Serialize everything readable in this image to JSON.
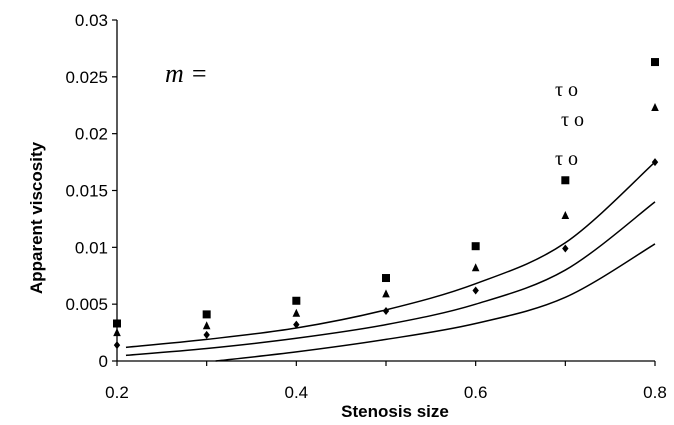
{
  "chart_data": {
    "type": "scatter",
    "xlabel": "Stenosis size",
    "ylabel": "Apparent viscosity",
    "xlim": [
      0.2,
      0.8
    ],
    "ylim": [
      0,
      0.03
    ],
    "grid": false,
    "x_ticks": [
      "0.2",
      "0.4",
      "0.6",
      "0.8"
    ],
    "y_ticks": [
      "0",
      "0.005",
      "0.01",
      "0.015",
      "0.02",
      "0.025",
      "0.03"
    ],
    "annotations": {
      "m_label": "m = ",
      "tau_labels": [
        "τ o",
        "τ o",
        "τ o"
      ]
    },
    "series": [
      {
        "marker": "square",
        "x": [
          0.2,
          0.3,
          0.4,
          0.5,
          0.6,
          0.7,
          0.8
        ],
        "y": [
          0.0033,
          0.0041,
          0.0053,
          0.0073,
          0.0101,
          0.0159,
          0.0263
        ]
      },
      {
        "marker": "triangle",
        "x": [
          0.2,
          0.3,
          0.4,
          0.5,
          0.6,
          0.7,
          0.8
        ],
        "y": [
          0.0025,
          0.0031,
          0.0042,
          0.0059,
          0.0082,
          0.0128,
          0.0223
        ]
      },
      {
        "marker": "diamond",
        "x": [
          0.2,
          0.3,
          0.4,
          0.5,
          0.6,
          0.7,
          0.8
        ],
        "y": [
          0.0014,
          0.0023,
          0.0032,
          0.0044,
          0.0062,
          0.0099,
          0.0175
        ]
      },
      {
        "marker": "line",
        "x": [
          0.21,
          0.3,
          0.4,
          0.5,
          0.6,
          0.7,
          0.8
        ],
        "y": [
          0.0012,
          0.0019,
          0.0029,
          0.0045,
          0.0068,
          0.0104,
          0.0175
        ]
      },
      {
        "marker": "line",
        "x": [
          0.21,
          0.3,
          0.4,
          0.5,
          0.6,
          0.7,
          0.8
        ],
        "y": [
          0.0005,
          0.0011,
          0.002,
          0.0032,
          0.005,
          0.008,
          0.014
        ]
      },
      {
        "marker": "line",
        "x": [
          0.31,
          0.4,
          0.5,
          0.6,
          0.7,
          0.8
        ],
        "y": [
          0.0,
          0.0008,
          0.0019,
          0.0033,
          0.0056,
          0.0103
        ]
      }
    ]
  }
}
